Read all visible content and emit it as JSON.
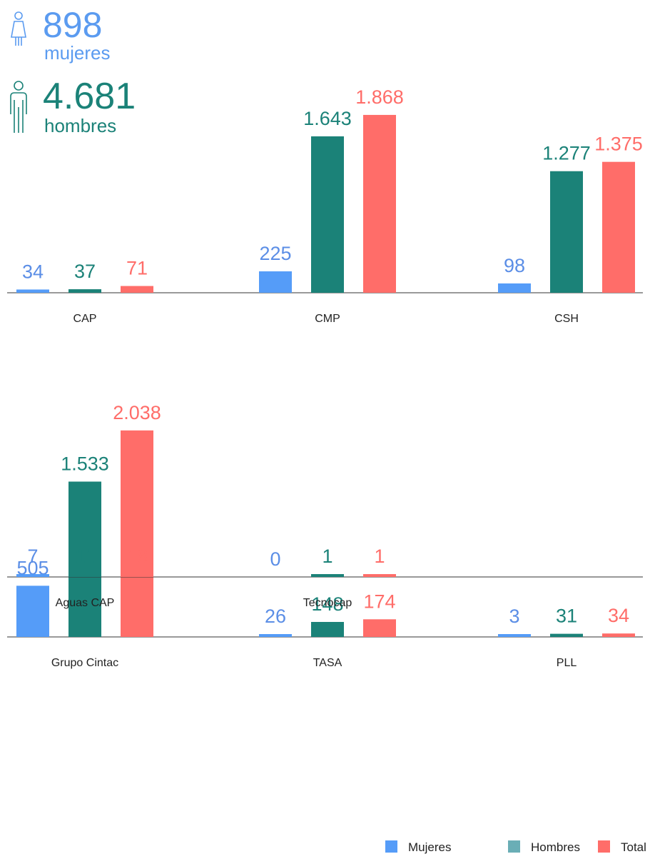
{
  "header": {
    "women": {
      "count": "898",
      "label": "mujeres"
    },
    "men": {
      "count": "4.681",
      "label": "hombres"
    }
  },
  "legend": [
    {
      "name": "Mujeres",
      "color": "#559cf8"
    },
    {
      "name": "Hombres",
      "color": "#6aaeb6"
    },
    {
      "name": "Total",
      "color": "#ff6d69"
    }
  ],
  "chart_data": [
    {
      "type": "bar",
      "categories": [
        "CAP",
        "CMP",
        "CSH"
      ],
      "ylim": [
        0,
        2100
      ],
      "series": [
        {
          "color": "#559cf8",
          "label_color": "#5b8ee6",
          "values": [
            34,
            225,
            98
          ]
        },
        {
          "color": "#1b8278",
          "label_color": "#1b8278",
          "values": [
            37,
            1643,
            1277
          ],
          "value_labels": [
            "37",
            "1.643",
            "1.277"
          ]
        },
        {
          "color": "#ff6d69",
          "label_color": "#ff6d69",
          "values": [
            71,
            1868,
            1375
          ],
          "value_labels": [
            "71",
            "1.868",
            "1.375"
          ]
        }
      ]
    },
    {
      "type": "bar",
      "categories": [
        "Grupo Cintac",
        "TASA",
        "PLL"
      ],
      "ylim": [
        0,
        2100
      ],
      "series": [
        {
          "color": "#559cf8",
          "label_color": "#5b8ee6",
          "values": [
            505,
            26,
            3
          ]
        },
        {
          "color": "#1b8278",
          "label_color": "#1b8278",
          "values": [
            1533,
            148,
            31
          ],
          "value_labels": [
            "1.533",
            "148",
            "31"
          ]
        },
        {
          "color": "#ff6d69",
          "label_color": "#ff6d69",
          "values": [
            2038,
            174,
            34
          ],
          "value_labels": [
            "2.038",
            "174",
            "34"
          ]
        }
      ]
    },
    {
      "type": "bar",
      "categories": [
        "Aguas CAP",
        "Tecnocap"
      ],
      "ylim": [
        0,
        2100
      ],
      "series": [
        {
          "color": "#559cf8",
          "label_color": "#5b8ee6",
          "values": [
            7,
            0
          ]
        },
        {
          "color": "#1b8278",
          "label_color": "#1b8278",
          "values": [
            11,
            1
          ]
        },
        {
          "color": "#ff6d69",
          "label_color": "#ff6d69",
          "values": [
            18,
            1
          ]
        }
      ]
    }
  ]
}
